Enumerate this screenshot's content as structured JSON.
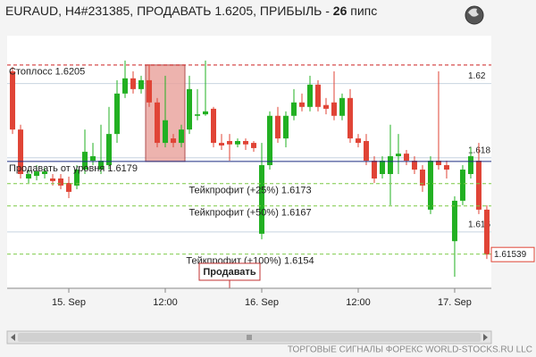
{
  "header": {
    "title": "EURAUD, H4#231385, ПРОДАВАТЬ 1.6205, ПРИБЫЛЬ - ",
    "profit": "26",
    "unit": " пипс"
  },
  "footer": "ТОРГОВЫЕ СИГНАЛЫ ФОРЕКС WORLD-STOCKS.RU LLC",
  "chart_data": {
    "type": "candlestick",
    "up_color": "#22b022",
    "down_color": "#e04436",
    "x": [
      0,
      1,
      2,
      3,
      4,
      5,
      6,
      7,
      8,
      9,
      10,
      11,
      12,
      13,
      14,
      15,
      16,
      17,
      18,
      19,
      20,
      21,
      22,
      23,
      24,
      25,
      26,
      27,
      28,
      29,
      30,
      31,
      32,
      33,
      34,
      35,
      36,
      37,
      38,
      39,
      40,
      41,
      42,
      43,
      44,
      45,
      46,
      47,
      48,
      49,
      50,
      51,
      52,
      53,
      54,
      55,
      56,
      57,
      58,
      59
    ],
    "open": [
      1.62033,
      1.61876,
      1.61744,
      1.61751,
      1.61756,
      1.61744,
      1.61744,
      1.61732,
      1.61725,
      1.61768,
      1.61792,
      1.61768,
      1.6178,
      1.61864,
      1.61973,
      1.62014,
      1.61985,
      1.62009,
      1.61949,
      1.6184,
      1.61852,
      1.6184,
      1.61876,
      1.61913,
      1.61917,
      1.61932,
      1.6184,
      1.61845,
      1.61836,
      1.61845,
      1.6184,
      1.61595,
      1.6178,
      1.61913,
      1.61852,
      1.61913,
      1.61949,
      1.61937,
      1.61997,
      1.61942,
      1.61949,
      1.61913,
      1.61961,
      1.61852,
      1.61845,
      1.61792,
      1.61756,
      1.61756,
      1.61804,
      1.61811,
      1.61792,
      1.61768,
      1.6166,
      1.61792,
      1.6178,
      1.61575,
      1.61684,
      1.61756,
      1.61792,
      1.6166
    ],
    "high": [
      1.62045,
      1.61889,
      1.61768,
      1.6178,
      1.61773,
      1.61756,
      1.61756,
      1.61749,
      1.6178,
      1.61876,
      1.6184,
      1.61889,
      1.61937,
      1.62009,
      1.62062,
      1.62033,
      1.62021,
      1.62052,
      1.61961,
      1.62021,
      1.61864,
      1.61889,
      1.62021,
      1.61985,
      1.62062,
      1.61937,
      1.61864,
      1.61864,
      1.61852,
      1.61852,
      1.61845,
      1.6184,
      1.61925,
      1.61937,
      1.61925,
      1.61985,
      1.61973,
      1.62021,
      1.62009,
      1.61961,
      1.62033,
      1.61973,
      1.61985,
      1.61864,
      1.61864,
      1.61804,
      1.61804,
      1.61889,
      1.61864,
      1.61821,
      1.61804,
      1.6178,
      1.61804,
      1.62033,
      1.61792,
      1.61696,
      1.6178,
      1.61828,
      1.6184,
      1.61672
    ],
    "low": [
      1.61864,
      1.61744,
      1.61732,
      1.61739,
      1.61744,
      1.61725,
      1.61715,
      1.61691,
      1.61715,
      1.61756,
      1.6178,
      1.61756,
      1.61768,
      1.6184,
      1.61961,
      1.61973,
      1.61973,
      1.61937,
      1.61828,
      1.61828,
      1.61828,
      1.61828,
      1.61864,
      1.61901,
      1.61913,
      1.61828,
      1.61821,
      1.61792,
      1.61828,
      1.61821,
      1.61816,
      1.6158,
      1.61768,
      1.6184,
      1.61828,
      1.61901,
      1.61925,
      1.61925,
      1.61925,
      1.61917,
      1.61901,
      1.61901,
      1.6184,
      1.61828,
      1.6178,
      1.61732,
      1.61744,
      1.61672,
      1.61756,
      1.6178,
      1.61756,
      1.61708,
      1.61648,
      1.61768,
      1.61744,
      1.61479,
      1.61672,
      1.61744,
      1.61648,
      1.61527
    ],
    "close": [
      1.61876,
      1.61756,
      1.61756,
      1.61763,
      1.61763,
      1.61737,
      1.61725,
      1.61708,
      1.61768,
      1.61816,
      1.61804,
      1.61792,
      1.61864,
      1.61973,
      1.62014,
      1.61985,
      1.62009,
      1.61949,
      1.6184,
      1.61901,
      1.6184,
      1.61876,
      1.61985,
      1.61917,
      1.61925,
      1.6184,
      1.61833,
      1.61836,
      1.61845,
      1.61836,
      1.61826,
      1.6178,
      1.61913,
      1.61852,
      1.61913,
      1.61949,
      1.61937,
      1.61997,
      1.61937,
      1.61932,
      1.61913,
      1.61961,
      1.61852,
      1.6184,
      1.61792,
      1.61744,
      1.61792,
      1.61804,
      1.61811,
      1.61792,
      1.61768,
      1.61725,
      1.61792,
      1.6178,
      1.61768,
      1.61684,
      1.61768,
      1.61804,
      1.6166,
      1.61539
    ],
    "xlim": [
      -0.67,
      59.56
    ],
    "ylim": [
      1.61448,
      1.62129
    ],
    "xticks": [
      {
        "value": 7,
        "label": "15. Sep"
      },
      {
        "value": 19,
        "label": "12:00"
      },
      {
        "value": 31,
        "label": "16. Sep"
      },
      {
        "value": 43,
        "label": "12:00"
      },
      {
        "value": 55,
        "label": "17. Sep"
      }
    ],
    "yticks": [
      {
        "value": 1.62,
        "label": "1.62"
      },
      1.618,
      1.616
    ],
    "grid": true,
    "last_price": 1.61539,
    "zone": {
      "start": 17,
      "end": 21,
      "top": 1.6205,
      "bottom": 1.6179,
      "color": "#e8a09a"
    },
    "levels": [
      {
        "label": "Стоплосс 1.6205",
        "value": 1.6205,
        "color": "#cc2020",
        "style": "dashed",
        "align": "left"
      },
      {
        "label": "Продавать от уровня 1.6179",
        "value": 1.6179,
        "color": "#1a2a80",
        "style": "solid",
        "align": "left"
      },
      {
        "label": "Тейкпрофит (+25%) 1.6173",
        "value": 1.6173,
        "color": "#7ac943",
        "style": "dashed",
        "align": "center"
      },
      {
        "label": "Тейкпрофит (+50%) 1.6167",
        "value": 1.6167,
        "color": "#7ac943",
        "style": "dashed",
        "align": "center"
      },
      {
        "label": "Тейкпрофит (+100%) 1.6154",
        "value": 1.6154,
        "color": "#7ac943",
        "style": "dashed",
        "align": "center"
      }
    ],
    "marker": {
      "label": "Продавать",
      "x": 27
    }
  }
}
